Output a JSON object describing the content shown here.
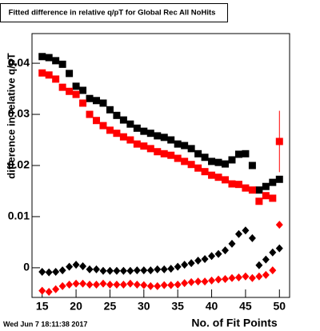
{
  "chart_data": {
    "type": "scatter",
    "title": "Fitted difference in relative q/pT for Global Rec All NoHits",
    "x_label": "No. of Fit Points",
    "y_label": "difference in relative q/pT",
    "footer": "Wed Jun  7 18:11:38 2017",
    "x": [
      15,
      16,
      17,
      18,
      19,
      20,
      21,
      22,
      23,
      24,
      25,
      26,
      27,
      28,
      29,
      30,
      31,
      32,
      33,
      34,
      35,
      36,
      37,
      38,
      39,
      40,
      41,
      42,
      43,
      44,
      45,
      46,
      47,
      48,
      49,
      50
    ],
    "series": [
      {
        "color": "#000000",
        "marker": "square",
        "values": [
          0.0413,
          0.0411,
          0.0405,
          0.0398,
          0.038,
          0.0355,
          0.0347,
          0.0331,
          0.0327,
          0.0322,
          0.0309,
          0.0298,
          0.0289,
          0.0281,
          0.0273,
          0.0267,
          0.0263,
          0.0258,
          0.0255,
          0.025,
          0.0242,
          0.0239,
          0.0233,
          0.0223,
          0.0216,
          0.0208,
          0.0206,
          0.0203,
          0.0211,
          0.0222,
          0.0223,
          0.02,
          0.0152,
          0.0159,
          0.0167,
          0.0173
        ]
      },
      {
        "color": "#ff0000",
        "marker": "square",
        "values": [
          0.0381,
          0.0377,
          0.0369,
          0.0353,
          0.0345,
          0.0339,
          0.0322,
          0.03,
          0.0288,
          0.0278,
          0.0269,
          0.0263,
          0.0256,
          0.025,
          0.0242,
          0.0238,
          0.0233,
          0.0227,
          0.0223,
          0.022,
          0.0214,
          0.0208,
          0.0202,
          0.0195,
          0.0188,
          0.0181,
          0.0177,
          0.0172,
          0.0164,
          0.0163,
          0.0156,
          0.0152,
          0.013,
          0.0141,
          0.0136,
          0.0247
        ],
        "errors": [
          null,
          null,
          null,
          null,
          null,
          null,
          null,
          null,
          null,
          null,
          null,
          null,
          null,
          null,
          null,
          null,
          null,
          null,
          null,
          null,
          null,
          null,
          null,
          null,
          null,
          null,
          null,
          null,
          null,
          null,
          null,
          null,
          null,
          null,
          null,
          0.006
        ]
      },
      {
        "color": "#000000",
        "marker": "diamond",
        "values": [
          -0.0008,
          -0.0009,
          -0.0008,
          -0.0005,
          0.0002,
          0.0006,
          0.0003,
          -0.0003,
          -0.0003,
          -0.0006,
          -0.0006,
          -0.0006,
          -0.0006,
          -0.0006,
          -0.0005,
          -0.0005,
          -0.0005,
          -0.0003,
          -0.0003,
          -0.0002,
          0.0002,
          0.0006,
          0.0009,
          0.0014,
          0.0017,
          0.0023,
          0.0027,
          0.0034,
          0.0047,
          0.0066,
          0.0073,
          0.0058,
          0.0005,
          0.0016,
          0.003,
          0.0038
        ]
      },
      {
        "color": "#ff0000",
        "marker": "diamond",
        "values": [
          -0.0045,
          -0.0047,
          -0.0042,
          -0.0036,
          -0.0033,
          -0.0031,
          -0.0031,
          -0.0033,
          -0.0033,
          -0.0031,
          -0.0033,
          -0.0033,
          -0.0033,
          -0.0031,
          -0.0033,
          -0.0034,
          -0.0036,
          -0.0036,
          -0.0034,
          -0.0034,
          -0.0033,
          -0.003,
          -0.0028,
          -0.0027,
          -0.0027,
          -0.0025,
          -0.0023,
          -0.0022,
          -0.002,
          -0.0019,
          -0.0017,
          -0.002,
          -0.0017,
          -0.0014,
          -0.0005,
          0.0084
        ]
      }
    ],
    "xlim": [
      13.5,
      51.5
    ],
    "xticks": [
      15,
      20,
      25,
      30,
      35,
      40,
      45,
      50
    ],
    "ylim": [
      -0.0058,
      0.0458
    ],
    "yticks": [
      0,
      0.01,
      0.02,
      0.03,
      0.04
    ]
  }
}
